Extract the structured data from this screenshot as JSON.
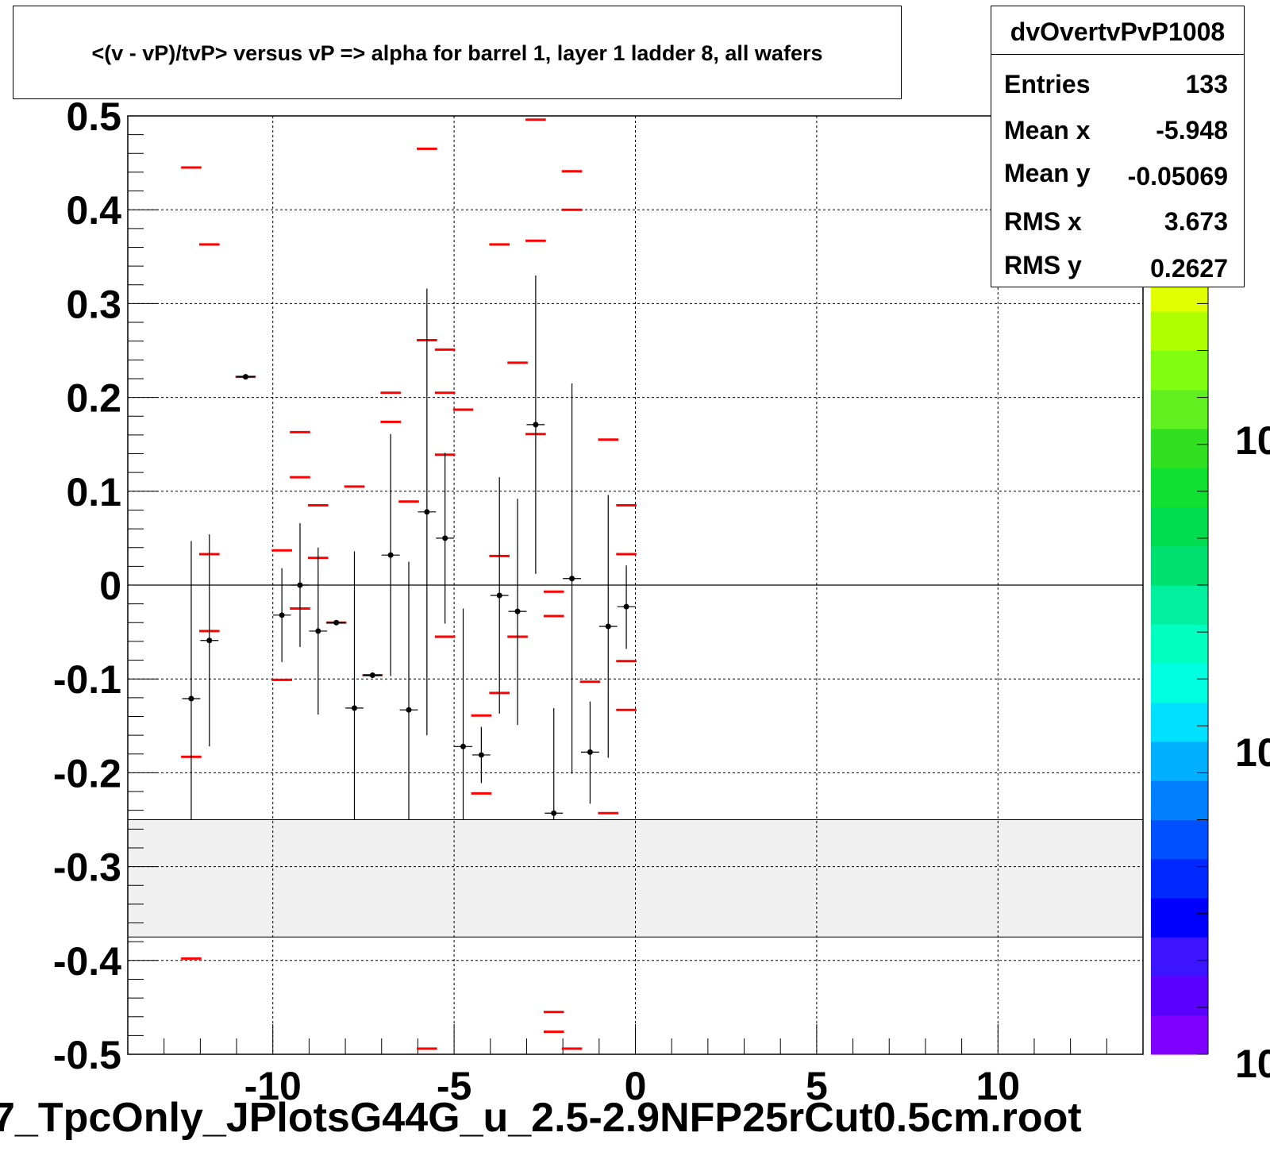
{
  "title": "<(v - vP)/tvP> versus   vP => alpha for barrel 1, layer 1 ladder 8, all wafers",
  "stats": {
    "name": "dvOvertvPvP1008",
    "rows": [
      {
        "label": "Entries",
        "value": "133"
      },
      {
        "label": "Mean x",
        "value": "-5.948"
      },
      {
        "label": "Mean y",
        "value": "-0.05069"
      },
      {
        "label": "RMS x",
        "value": "3.673"
      },
      {
        "label": "RMS y",
        "value": "0.2627"
      }
    ]
  },
  "file_label": "7_TpcOnly_JPlotsG44G_u_2.5-2.9NFP25rCut0.5cm.root",
  "colors": {
    "marker": "#000000",
    "red_lines": "#ff0000",
    "shaded_band": "#f0f0f0",
    "palette": [
      "#7f00ff",
      "#5a00ff",
      "#3c14ff",
      "#0000ff",
      "#0028ff",
      "#0050ff",
      "#0080ff",
      "#00b0ff",
      "#00e0ff",
      "#00ffe0",
      "#00ffc0",
      "#00f0a0",
      "#00e070",
      "#00dd50",
      "#10e030",
      "#30e020",
      "#60f020",
      "#80ff10",
      "#b0ff00",
      "#e0ff00",
      "#ffff00",
      "#ffe000",
      "#ffa000",
      "#ff6000"
    ]
  },
  "chart_data": {
    "type": "scatter",
    "title": "<(v - vP)/tvP> versus   vP => alpha for barrel 1, layer 1 ladder 8, all wafers",
    "xlabel": "",
    "ylabel": "",
    "xlim": [
      -14,
      14
    ],
    "ylim": [
      -0.5,
      0.5
    ],
    "x_ticks": [
      -10,
      -5,
      0,
      5,
      10
    ],
    "y_ticks": [
      0.5,
      0.4,
      0.3,
      0.2,
      0.1,
      0,
      -0.1,
      -0.2,
      -0.3,
      -0.4,
      -0.5
    ],
    "x_tick_labels": [
      "-10",
      "-5",
      "0",
      "5",
      "10"
    ],
    "y_tick_labels": [
      "0.5",
      "0.4",
      "0.3",
      "0.2",
      "0.1",
      "0",
      "-0.1",
      "-0.2",
      "-0.3",
      "-0.4",
      "-0.5"
    ],
    "grid": true,
    "shaded_y_range": [
      -0.375,
      -0.25
    ],
    "profile_points": [
      {
        "x": -12.25,
        "y": -0.121,
        "ylo": -0.25,
        "yhi": 0.047
      },
      {
        "x": -11.75,
        "y": -0.059,
        "ylo": -0.172,
        "yhi": 0.054
      },
      {
        "x": -10.75,
        "y": 0.222,
        "ylo": 0.222,
        "yhi": 0.222
      },
      {
        "x": -9.75,
        "y": -0.032,
        "ylo": -0.082,
        "yhi": 0.018
      },
      {
        "x": -9.25,
        "y": 0.0,
        "ylo": -0.066,
        "yhi": 0.066
      },
      {
        "x": -8.75,
        "y": -0.049,
        "ylo": -0.138,
        "yhi": 0.04
      },
      {
        "x": -8.25,
        "y": -0.04,
        "ylo": -0.04,
        "yhi": -0.04
      },
      {
        "x": -7.75,
        "y": -0.131,
        "ylo": -0.25,
        "yhi": 0.036
      },
      {
        "x": -7.25,
        "y": -0.096,
        "ylo": -0.096,
        "yhi": -0.096
      },
      {
        "x": -6.75,
        "y": 0.032,
        "ylo": -0.097,
        "yhi": 0.161
      },
      {
        "x": -6.25,
        "y": -0.133,
        "ylo": -0.25,
        "yhi": 0.025
      },
      {
        "x": -5.75,
        "y": 0.078,
        "ylo": -0.16,
        "yhi": 0.316
      },
      {
        "x": -5.25,
        "y": 0.05,
        "ylo": -0.041,
        "yhi": 0.141
      },
      {
        "x": -4.75,
        "y": -0.172,
        "ylo": -0.25,
        "yhi": -0.025
      },
      {
        "x": -4.25,
        "y": -0.181,
        "ylo": -0.211,
        "yhi": -0.151
      },
      {
        "x": -3.75,
        "y": -0.011,
        "ylo": -0.137,
        "yhi": 0.115
      },
      {
        "x": -3.25,
        "y": -0.028,
        "ylo": -0.149,
        "yhi": 0.092
      },
      {
        "x": -2.75,
        "y": 0.171,
        "ylo": 0.012,
        "yhi": 0.33
      },
      {
        "x": -2.25,
        "y": -0.243,
        "ylo": -0.25,
        "yhi": -0.131
      },
      {
        "x": -1.75,
        "y": 0.007,
        "ylo": -0.201,
        "yhi": 0.215
      },
      {
        "x": -1.25,
        "y": -0.178,
        "ylo": -0.233,
        "yhi": -0.124
      },
      {
        "x": -0.75,
        "y": -0.044,
        "ylo": -0.184,
        "yhi": 0.096
      },
      {
        "x": -0.25,
        "y": -0.023,
        "ylo": -0.068,
        "yhi": 0.021
      }
    ],
    "red_markers": [
      {
        "x": -12.25,
        "y": 0.445
      },
      {
        "x": -12.25,
        "y": -0.183
      },
      {
        "x": -12.25,
        "y": -0.398
      },
      {
        "x": -11.75,
        "y": 0.363
      },
      {
        "x": -11.75,
        "y": 0.033
      },
      {
        "x": -11.75,
        "y": -0.049
      },
      {
        "x": -10.75,
        "y": 0.222
      },
      {
        "x": -9.75,
        "y": 0.037
      },
      {
        "x": -9.75,
        "y": -0.101
      },
      {
        "x": -9.25,
        "y": 0.163
      },
      {
        "x": -9.25,
        "y": 0.115
      },
      {
        "x": -9.25,
        "y": -0.025
      },
      {
        "x": -8.75,
        "y": 0.085
      },
      {
        "x": -8.75,
        "y": 0.029
      },
      {
        "x": -8.25,
        "y": -0.04
      },
      {
        "x": -7.75,
        "y": 0.105
      },
      {
        "x": -7.25,
        "y": -0.096
      },
      {
        "x": -6.75,
        "y": 0.205
      },
      {
        "x": -6.75,
        "y": 0.174
      },
      {
        "x": -6.25,
        "y": 0.089
      },
      {
        "x": -5.75,
        "y": 0.465
      },
      {
        "x": -5.75,
        "y": 0.261
      },
      {
        "x": -5.75,
        "y": -0.494
      },
      {
        "x": -5.25,
        "y": 0.251
      },
      {
        "x": -5.25,
        "y": 0.205
      },
      {
        "x": -5.25,
        "y": 0.139
      },
      {
        "x": -5.25,
        "y": -0.055
      },
      {
        "x": -4.75,
        "y": 0.187
      },
      {
        "x": -4.25,
        "y": -0.139
      },
      {
        "x": -4.25,
        "y": -0.222
      },
      {
        "x": -3.75,
        "y": 0.363
      },
      {
        "x": -3.75,
        "y": 0.031
      },
      {
        "x": -3.75,
        "y": -0.115
      },
      {
        "x": -3.25,
        "y": 0.237
      },
      {
        "x": -3.25,
        "y": -0.055
      },
      {
        "x": -2.75,
        "y": 0.496
      },
      {
        "x": -2.75,
        "y": 0.367
      },
      {
        "x": -2.75,
        "y": 0.161
      },
      {
        "x": -2.25,
        "y": -0.007
      },
      {
        "x": -2.25,
        "y": -0.033
      },
      {
        "x": -2.25,
        "y": -0.455
      },
      {
        "x": -2.25,
        "y": -0.476
      },
      {
        "x": -1.75,
        "y": 0.441
      },
      {
        "x": -1.75,
        "y": 0.4
      },
      {
        "x": -1.75,
        "y": -0.494
      },
      {
        "x": -1.25,
        "y": -0.103
      },
      {
        "x": -0.75,
        "y": 0.155
      },
      {
        "x": -0.75,
        "y": -0.243
      },
      {
        "x": -0.25,
        "y": 0.085
      },
      {
        "x": -0.25,
        "y": 0.033
      },
      {
        "x": -0.25,
        "y": -0.081
      },
      {
        "x": -0.25,
        "y": -0.133
      }
    ],
    "color_scale_labels": [
      "10",
      "10",
      "10"
    ]
  }
}
